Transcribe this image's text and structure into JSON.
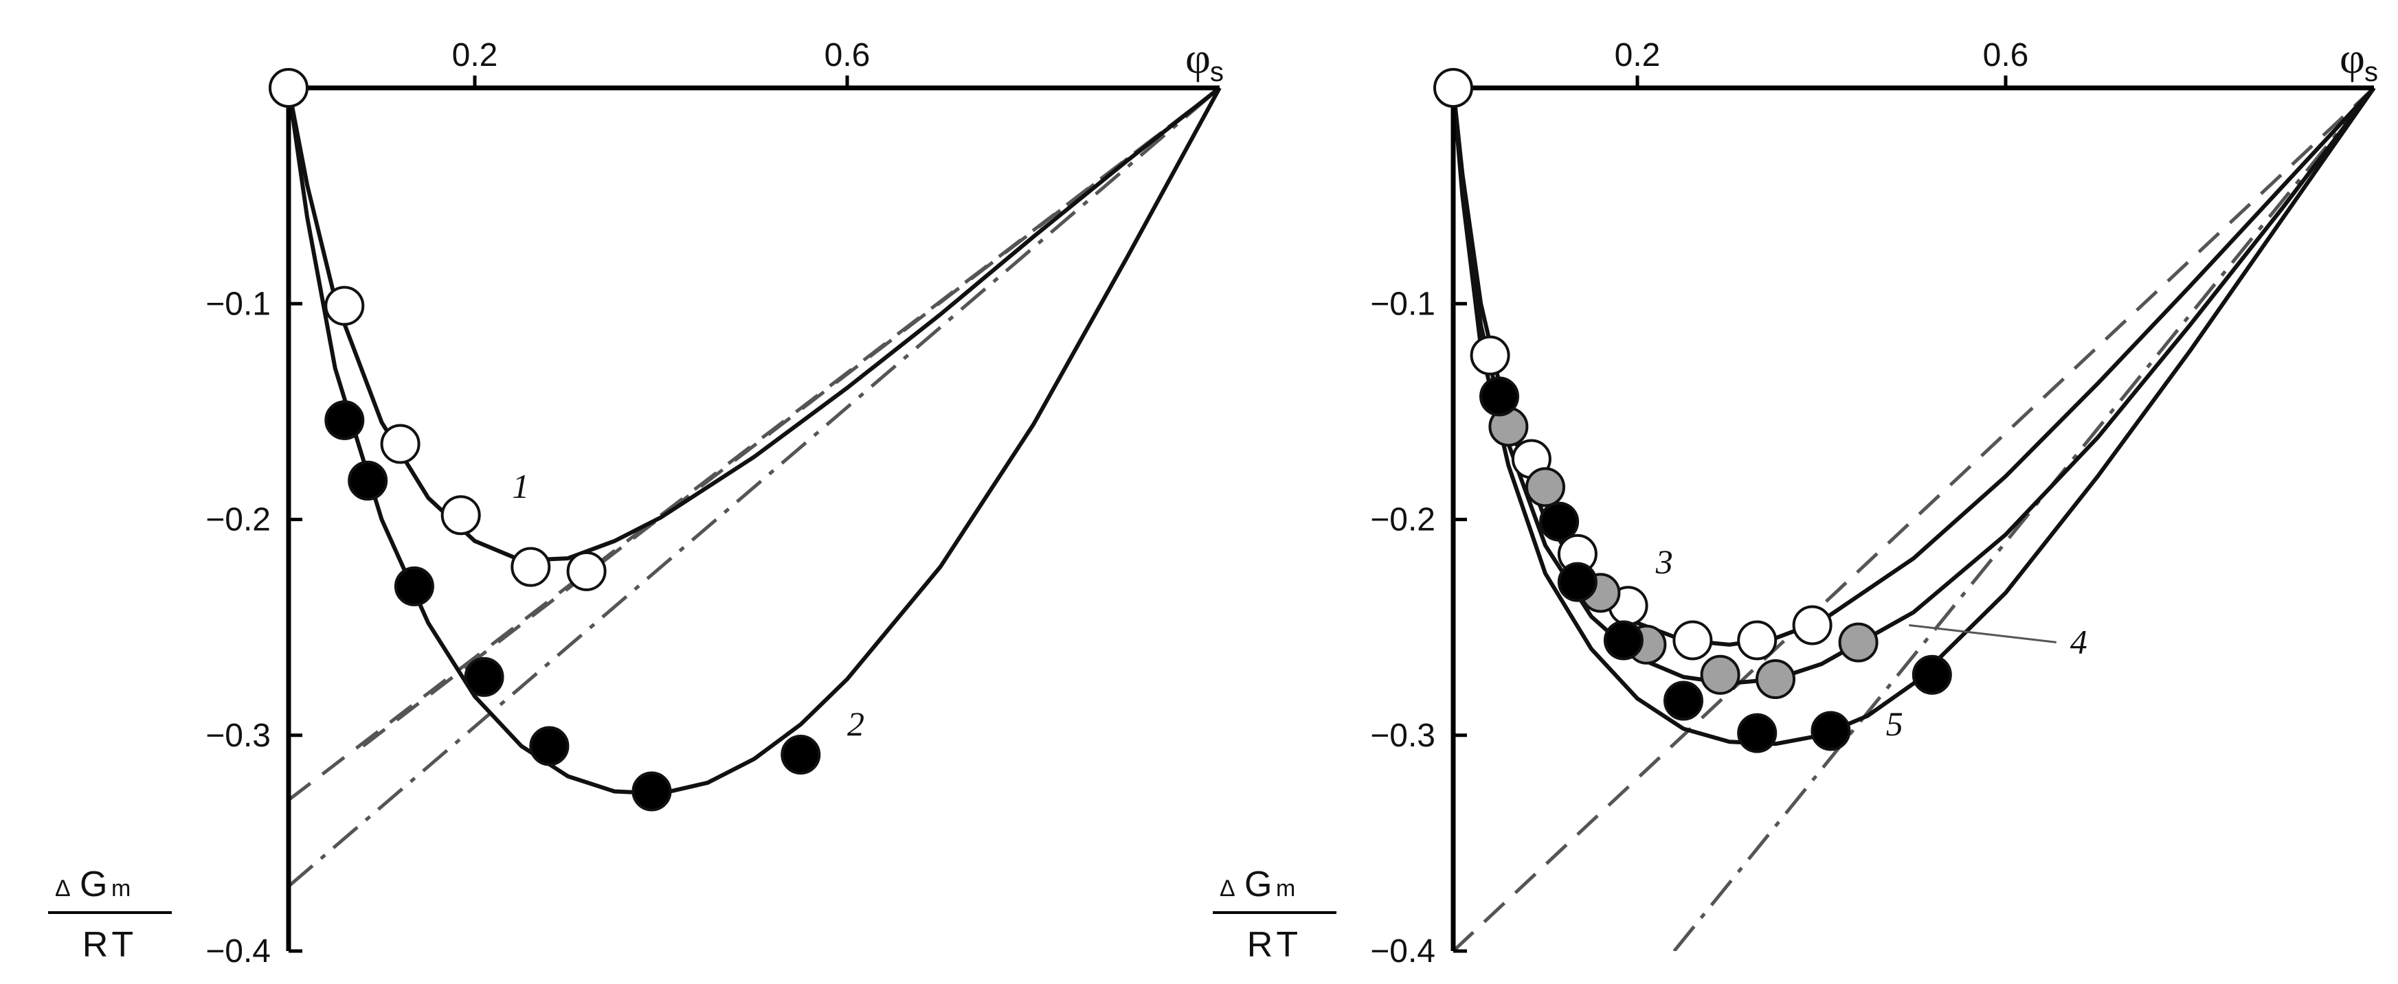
{
  "chart_data": [
    {
      "type": "scatter",
      "panel": "left",
      "x_axis_symbol": "φ",
      "x_axis_subscript": "s",
      "y_axis_label": {
        "numerator_prefix": "Δ",
        "numerator": "G",
        "numerator_sub": "m",
        "denominator": "RT"
      },
      "xlim": [
        0,
        1.0
      ],
      "ylim": [
        -0.4,
        0
      ],
      "x_ticks": [
        {
          "value": 0.2,
          "label": "0.2"
        },
        {
          "value": 0.6,
          "label": "0.6"
        }
      ],
      "y_ticks": [
        {
          "value": -0.1,
          "label": "−0.1"
        },
        {
          "value": -0.2,
          "label": "−0.2"
        },
        {
          "value": -0.3,
          "label": "−0.3"
        },
        {
          "value": -0.4,
          "label": "−0.4"
        }
      ],
      "series": [
        {
          "label": "1",
          "marker": "open",
          "fill": "#ffffff",
          "points": [
            [
              0,
              0
            ],
            [
              0.06,
              -0.101
            ],
            [
              0.12,
              -0.165
            ],
            [
              0.185,
              -0.198
            ],
            [
              0.26,
              -0.222
            ],
            [
              0.32,
              -0.224
            ]
          ],
          "curve": [
            [
              0,
              0
            ],
            [
              0.02,
              -0.045
            ],
            [
              0.05,
              -0.098
            ],
            [
              0.1,
              -0.155
            ],
            [
              0.15,
              -0.19
            ],
            [
              0.2,
              -0.21
            ],
            [
              0.25,
              -0.219
            ],
            [
              0.3,
              -0.218
            ],
            [
              0.35,
              -0.21
            ],
            [
              0.4,
              -0.199
            ],
            [
              0.5,
              -0.171
            ],
            [
              0.6,
              -0.139
            ],
            [
              0.7,
              -0.105
            ],
            [
              0.8,
              -0.069
            ],
            [
              0.9,
              -0.034
            ],
            [
              1.0,
              0
            ]
          ]
        },
        {
          "label": "2",
          "marker": "filled",
          "fill": "#000000",
          "points": [
            [
              0.06,
              -0.154
            ],
            [
              0.085,
              -0.182
            ],
            [
              0.135,
              -0.231
            ],
            [
              0.21,
              -0.273
            ],
            [
              0.28,
              -0.305
            ],
            [
              0.39,
              -0.326
            ],
            [
              0.55,
              -0.309
            ]
          ],
          "curve": [
            [
              0,
              0
            ],
            [
              0.02,
              -0.06
            ],
            [
              0.05,
              -0.13
            ],
            [
              0.1,
              -0.2
            ],
            [
              0.15,
              -0.248
            ],
            [
              0.2,
              -0.282
            ],
            [
              0.25,
              -0.305
            ],
            [
              0.3,
              -0.319
            ],
            [
              0.35,
              -0.326
            ],
            [
              0.4,
              -0.327
            ],
            [
              0.45,
              -0.322
            ],
            [
              0.5,
              -0.311
            ],
            [
              0.55,
              -0.295
            ],
            [
              0.6,
              -0.274
            ],
            [
              0.7,
              -0.222
            ],
            [
              0.8,
              -0.156
            ],
            [
              0.9,
              -0.079
            ],
            [
              1.0,
              0
            ]
          ]
        }
      ],
      "reference_lines": [
        {
          "style": "dashed",
          "color": "#555555",
          "from": [
            0.08,
            -0.305
          ],
          "to": [
            1.0,
            0
          ]
        },
        {
          "style": "dashed",
          "color": "#555555",
          "from": [
            0,
            -0.33
          ],
          "to": [
            1.0,
            0
          ]
        },
        {
          "style": "dash-dot",
          "color": "#555555",
          "from": [
            0,
            -0.37
          ],
          "to": [
            1.0,
            0
          ]
        }
      ],
      "annotations": [
        {
          "text": "1",
          "x": 0.24,
          "y": -0.19
        },
        {
          "text": "2",
          "x": 0.6,
          "y": -0.3
        }
      ]
    },
    {
      "type": "scatter",
      "panel": "right",
      "x_axis_symbol": "φ",
      "x_axis_subscript": "s",
      "y_axis_label": {
        "numerator_prefix": "Δ",
        "numerator": "G",
        "numerator_sub": "m",
        "denominator": "RT"
      },
      "xlim": [
        0,
        1.0
      ],
      "ylim": [
        -0.4,
        0
      ],
      "x_ticks": [
        {
          "value": 0.2,
          "label": "0.2"
        },
        {
          "value": 0.6,
          "label": "0.6"
        }
      ],
      "y_ticks": [
        {
          "value": -0.1,
          "label": "−0.1"
        },
        {
          "value": -0.2,
          "label": "−0.2"
        },
        {
          "value": -0.3,
          "label": "−0.3"
        },
        {
          "value": -0.4,
          "label": "−0.4"
        }
      ],
      "series": [
        {
          "label": "3",
          "marker": "open",
          "fill": "#ffffff",
          "points": [
            [
              0,
              0
            ],
            [
              0.04,
              -0.124
            ],
            [
              0.085,
              -0.172
            ],
            [
              0.135,
              -0.216
            ],
            [
              0.19,
              -0.24
            ],
            [
              0.26,
              -0.256
            ],
            [
              0.33,
              -0.256
            ],
            [
              0.39,
              -0.249
            ]
          ],
          "curve": [
            [
              0,
              0
            ],
            [
              0.01,
              -0.04
            ],
            [
              0.03,
              -0.1
            ],
            [
              0.06,
              -0.155
            ],
            [
              0.1,
              -0.2
            ],
            [
              0.15,
              -0.231
            ],
            [
              0.2,
              -0.248
            ],
            [
              0.25,
              -0.256
            ],
            [
              0.3,
              -0.258
            ],
            [
              0.35,
              -0.255
            ],
            [
              0.4,
              -0.247
            ],
            [
              0.5,
              -0.218
            ],
            [
              0.6,
              -0.18
            ],
            [
              0.7,
              -0.137
            ],
            [
              0.8,
              -0.092
            ],
            [
              0.9,
              -0.046
            ],
            [
              1.0,
              0
            ]
          ]
        },
        {
          "label": "4",
          "marker": "gray",
          "fill": "#a0a0a0",
          "points": [
            [
              0.06,
              -0.157
            ],
            [
              0.1,
              -0.185
            ],
            [
              0.16,
              -0.234
            ],
            [
              0.21,
              -0.258
            ],
            [
              0.29,
              -0.272
            ],
            [
              0.35,
              -0.274
            ],
            [
              0.44,
              -0.257
            ]
          ],
          "curve": [
            [
              0,
              0
            ],
            [
              0.01,
              -0.045
            ],
            [
              0.03,
              -0.11
            ],
            [
              0.06,
              -0.165
            ],
            [
              0.1,
              -0.212
            ],
            [
              0.15,
              -0.245
            ],
            [
              0.2,
              -0.264
            ],
            [
              0.25,
              -0.273
            ],
            [
              0.3,
              -0.276
            ],
            [
              0.35,
              -0.274
            ],
            [
              0.4,
              -0.267
            ],
            [
              0.5,
              -0.243
            ],
            [
              0.6,
              -0.207
            ],
            [
              0.7,
              -0.162
            ],
            [
              0.8,
              -0.11
            ],
            [
              0.9,
              -0.056
            ],
            [
              1.0,
              0
            ]
          ]
        },
        {
          "label": "5",
          "marker": "filled",
          "fill": "#000000",
          "points": [
            [
              0.05,
              -0.143
            ],
            [
              0.115,
              -0.201
            ],
            [
              0.135,
              -0.229
            ],
            [
              0.185,
              -0.256
            ],
            [
              0.25,
              -0.284
            ],
            [
              0.33,
              -0.299
            ],
            [
              0.41,
              -0.298
            ],
            [
              0.52,
              -0.272
            ]
          ],
          "curve": [
            [
              0,
              0
            ],
            [
              0.01,
              -0.05
            ],
            [
              0.03,
              -0.12
            ],
            [
              0.06,
              -0.175
            ],
            [
              0.1,
              -0.225
            ],
            [
              0.15,
              -0.26
            ],
            [
              0.2,
              -0.283
            ],
            [
              0.25,
              -0.297
            ],
            [
              0.3,
              -0.303
            ],
            [
              0.35,
              -0.304
            ],
            [
              0.4,
              -0.3
            ],
            [
              0.45,
              -0.291
            ],
            [
              0.5,
              -0.276
            ],
            [
              0.6,
              -0.234
            ],
            [
              0.7,
              -0.18
            ],
            [
              0.8,
              -0.122
            ],
            [
              0.9,
              -0.061
            ],
            [
              1.0,
              0
            ]
          ]
        }
      ],
      "reference_lines": [
        {
          "style": "dashed",
          "color": "#555555",
          "from": [
            0,
            -0.4
          ],
          "to": [
            1.0,
            0
          ]
        },
        {
          "style": "dash-dot",
          "color": "#555555",
          "from": [
            0.24,
            -0.4
          ],
          "to": [
            1.0,
            0
          ]
        }
      ],
      "annotations": [
        {
          "text": "3",
          "x": 0.22,
          "y": -0.225
        },
        {
          "text": "4",
          "x": 0.67,
          "y": -0.262,
          "leader_to": [
            0.495,
            -0.249
          ]
        },
        {
          "text": "5",
          "x": 0.47,
          "y": -0.3
        }
      ]
    }
  ]
}
